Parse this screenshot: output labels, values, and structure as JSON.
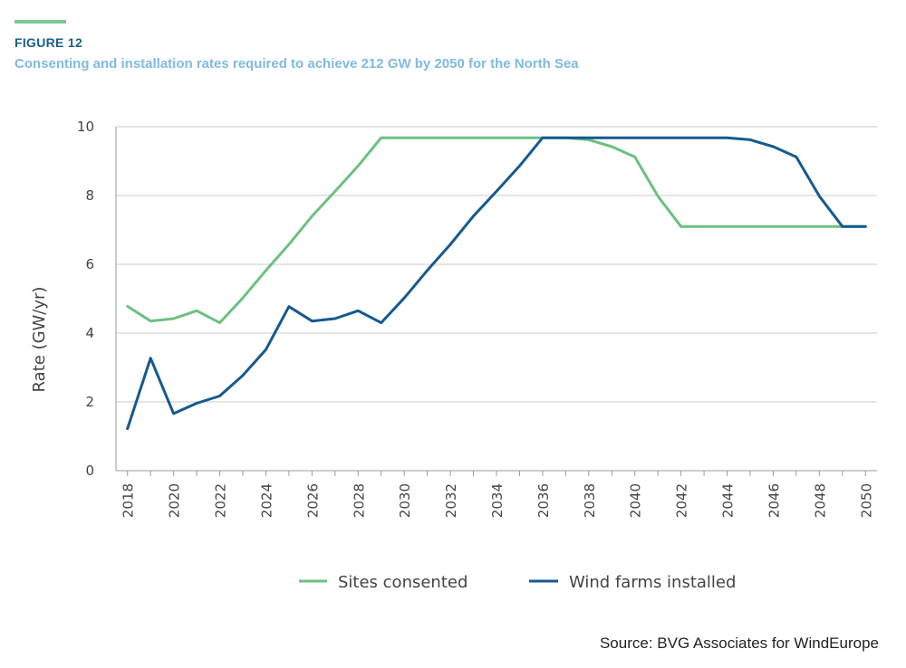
{
  "header": {
    "figure_label": "FIGURE 12",
    "title": "Consenting and installation rates required to achieve 212 GW by 2050 for the North Sea"
  },
  "footer": {
    "source": "Source: BVG Associates for WindEurope"
  },
  "colors": {
    "accent": "#7dc98f",
    "consented": "#6cc07f",
    "installed": "#15598f",
    "label_dark": "#1b5f8c",
    "label_light": "#7fb9e0"
  },
  "chart_data": {
    "type": "line",
    "title": "Consenting and installation rates required to achieve 212 GW by 2050 for the North Sea",
    "xlabel": "",
    "ylabel": "Rate (GW/yr)",
    "ylim": [
      0,
      10
    ],
    "yticks": [
      0,
      2,
      4,
      6,
      8,
      10
    ],
    "xlim": [
      2017.5,
      2050.5
    ],
    "xticks": [
      "2018",
      "2020",
      "2022",
      "2024",
      "2026",
      "2028",
      "2030",
      "2032",
      "2034",
      "2036",
      "2038",
      "2040",
      "2042",
      "2044",
      "2046",
      "2048",
      "2050"
    ],
    "grid": "horizontal",
    "legend_position": "bottom",
    "x": [
      2018,
      2019,
      2020,
      2021,
      2022,
      2023,
      2024,
      2025,
      2026,
      2027,
      2028,
      2029,
      2030,
      2031,
      2032,
      2033,
      2034,
      2035,
      2036,
      2037,
      2038,
      2039,
      2040,
      2041,
      2042,
      2043,
      2044,
      2045,
      2046,
      2047,
      2048,
      2049,
      2050
    ],
    "series": [
      {
        "name": "Sites consented",
        "values": [
          4.78,
          4.35,
          4.42,
          4.65,
          4.3,
          5.02,
          5.82,
          6.58,
          7.4,
          8.12,
          8.86,
          9.68,
          9.68,
          9.68,
          9.68,
          9.68,
          9.68,
          9.68,
          9.68,
          9.68,
          9.62,
          9.42,
          9.12,
          7.98,
          7.1,
          7.1,
          7.1,
          7.1,
          7.1,
          7.1,
          7.1,
          7.1,
          7.1
        ]
      },
      {
        "name": "Wind farms installed",
        "values": [
          1.22,
          3.27,
          1.66,
          1.96,
          2.17,
          2.77,
          3.52,
          4.77,
          4.35,
          4.42,
          4.65,
          4.3,
          5.02,
          5.82,
          6.58,
          7.4,
          8.12,
          8.86,
          9.68,
          9.68,
          9.68,
          9.68,
          9.68,
          9.68,
          9.68,
          9.68,
          9.68,
          9.62,
          9.42,
          9.12,
          7.98,
          7.1,
          7.1
        ]
      }
    ]
  }
}
